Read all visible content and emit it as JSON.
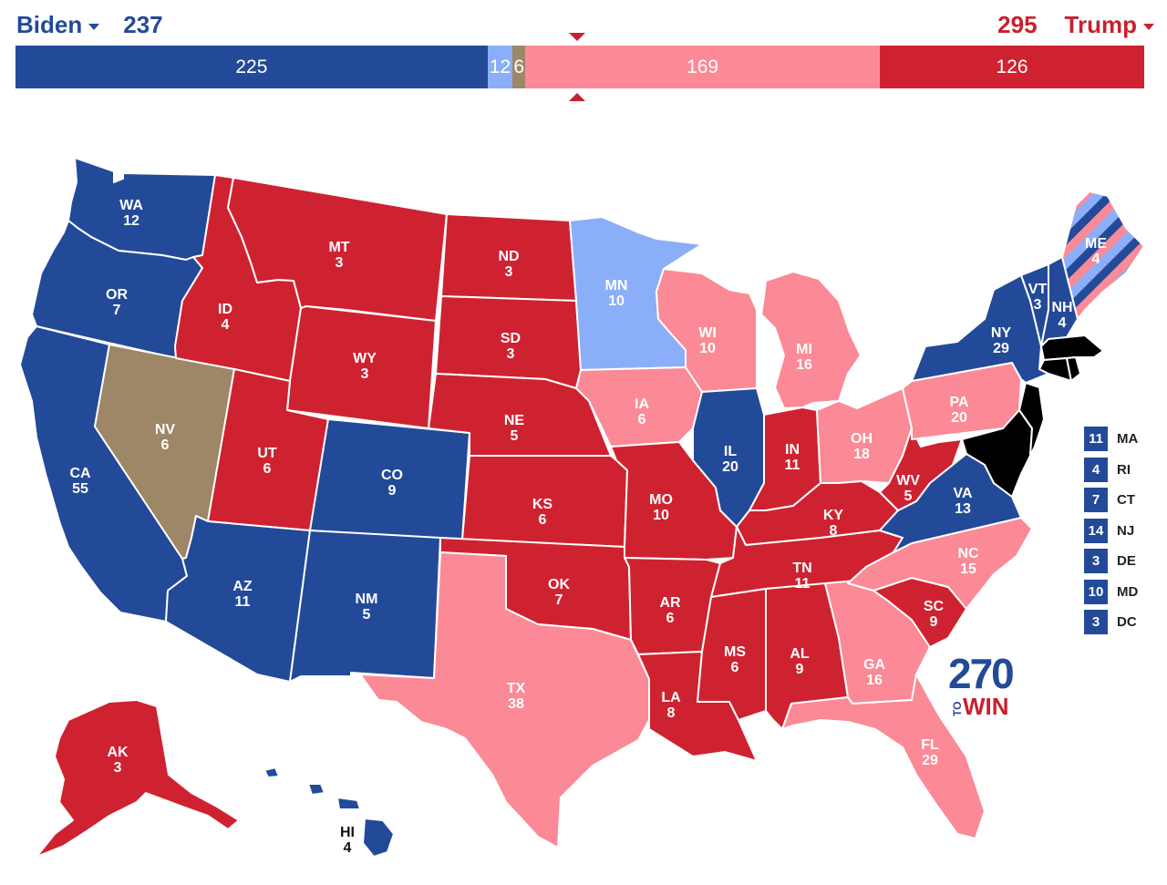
{
  "header": {
    "left": {
      "name": "Biden",
      "total": "237"
    },
    "right": {
      "name": "Trump",
      "total": "295"
    }
  },
  "bar": [
    {
      "value": 225,
      "label": "225",
      "color": "#234a98"
    },
    {
      "value": 12,
      "label": "12",
      "color": "#8aaef8"
    },
    {
      "value": 6,
      "label": "6",
      "color": "#9e8766"
    },
    {
      "value": 169,
      "label": "169",
      "color": "#fb8a96"
    },
    {
      "value": 126,
      "label": "126",
      "color": "#cf2231"
    }
  ],
  "colors": {
    "safe_dem": "#234a98",
    "likely_dem": "#8aaef8",
    "tossup": "#9e8766",
    "likely_rep": "#fb8a96",
    "safe_rep": "#cf2231"
  },
  "states": {
    "WA": {
      "abbr": "WA",
      "ev": "12",
      "rating": "safe_dem"
    },
    "OR": {
      "abbr": "OR",
      "ev": "7",
      "rating": "safe_dem"
    },
    "CA": {
      "abbr": "CA",
      "ev": "55",
      "rating": "safe_dem"
    },
    "NV": {
      "abbr": "NV",
      "ev": "6",
      "rating": "tossup"
    },
    "ID": {
      "abbr": "ID",
      "ev": "4",
      "rating": "safe_rep"
    },
    "MT": {
      "abbr": "MT",
      "ev": "3",
      "rating": "safe_rep"
    },
    "WY": {
      "abbr": "WY",
      "ev": "3",
      "rating": "safe_rep"
    },
    "UT": {
      "abbr": "UT",
      "ev": "6",
      "rating": "safe_rep"
    },
    "AZ": {
      "abbr": "AZ",
      "ev": "11",
      "rating": "safe_dem"
    },
    "CO": {
      "abbr": "CO",
      "ev": "9",
      "rating": "safe_dem"
    },
    "NM": {
      "abbr": "NM",
      "ev": "5",
      "rating": "safe_dem"
    },
    "ND": {
      "abbr": "ND",
      "ev": "3",
      "rating": "safe_rep"
    },
    "SD": {
      "abbr": "SD",
      "ev": "3",
      "rating": "safe_rep"
    },
    "NE": {
      "abbr": "NE",
      "ev": "5",
      "rating": "safe_rep"
    },
    "KS": {
      "abbr": "KS",
      "ev": "6",
      "rating": "safe_rep"
    },
    "OK": {
      "abbr": "OK",
      "ev": "7",
      "rating": "safe_rep"
    },
    "TX": {
      "abbr": "TX",
      "ev": "38",
      "rating": "likely_rep"
    },
    "MN": {
      "abbr": "MN",
      "ev": "10",
      "rating": "likely_dem"
    },
    "IA": {
      "abbr": "IA",
      "ev": "6",
      "rating": "likely_rep"
    },
    "MO": {
      "abbr": "MO",
      "ev": "10",
      "rating": "safe_rep"
    },
    "AR": {
      "abbr": "AR",
      "ev": "6",
      "rating": "safe_rep"
    },
    "LA": {
      "abbr": "LA",
      "ev": "8",
      "rating": "safe_rep"
    },
    "WI": {
      "abbr": "WI",
      "ev": "10",
      "rating": "likely_rep"
    },
    "IL": {
      "abbr": "IL",
      "ev": "20",
      "rating": "safe_dem"
    },
    "MI": {
      "abbr": "MI",
      "ev": "16",
      "rating": "likely_rep"
    },
    "IN": {
      "abbr": "IN",
      "ev": "11",
      "rating": "safe_rep"
    },
    "OH": {
      "abbr": "OH",
      "ev": "18",
      "rating": "likely_rep"
    },
    "KY": {
      "abbr": "KY",
      "ev": "8",
      "rating": "safe_rep"
    },
    "TN": {
      "abbr": "TN",
      "ev": "11",
      "rating": "safe_rep"
    },
    "MS": {
      "abbr": "MS",
      "ev": "6",
      "rating": "safe_rep"
    },
    "AL": {
      "abbr": "AL",
      "ev": "9",
      "rating": "safe_rep"
    },
    "GA": {
      "abbr": "GA",
      "ev": "16",
      "rating": "likely_rep"
    },
    "FL": {
      "abbr": "FL",
      "ev": "29",
      "rating": "likely_rep"
    },
    "SC": {
      "abbr": "SC",
      "ev": "9",
      "rating": "safe_rep"
    },
    "NC": {
      "abbr": "NC",
      "ev": "15",
      "rating": "likely_rep"
    },
    "VA": {
      "abbr": "VA",
      "ev": "13",
      "rating": "safe_dem"
    },
    "WV": {
      "abbr": "WV",
      "ev": "5",
      "rating": "safe_rep"
    },
    "PA": {
      "abbr": "PA",
      "ev": "20",
      "rating": "likely_rep"
    },
    "NY": {
      "abbr": "NY",
      "ev": "29",
      "rating": "safe_dem"
    },
    "VT": {
      "abbr": "VT",
      "ev": "3",
      "rating": "safe_dem"
    },
    "NH": {
      "abbr": "NH",
      "ev": "4",
      "rating": "safe_dem"
    },
    "ME": {
      "abbr": "ME",
      "ev": "4",
      "rating": "split"
    },
    "AK": {
      "abbr": "AK",
      "ev": "3",
      "rating": "safe_rep"
    },
    "HI": {
      "abbr": "HI",
      "ev": "4",
      "rating": "safe_dem"
    }
  },
  "small_states": [
    {
      "ev": "11",
      "abbr": "MA"
    },
    {
      "ev": "4",
      "abbr": "RI"
    },
    {
      "ev": "7",
      "abbr": "CT"
    },
    {
      "ev": "14",
      "abbr": "NJ"
    },
    {
      "ev": "3",
      "abbr": "DE"
    },
    {
      "ev": "10",
      "abbr": "MD"
    },
    {
      "ev": "3",
      "abbr": "DC"
    }
  ],
  "logo": {
    "number": "270",
    "to": "TO",
    "win": "WIN"
  }
}
